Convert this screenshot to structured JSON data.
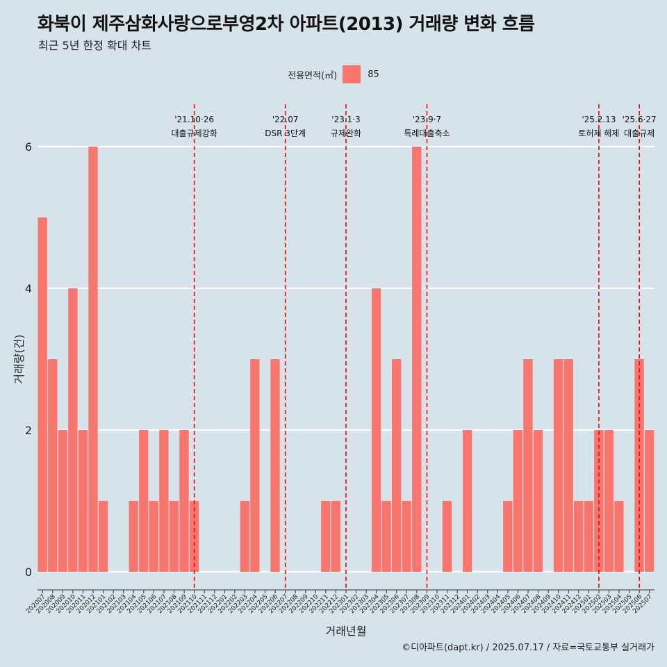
{
  "title": "화북이 제주삼화사랑으로부영2차 아파트(2013) 거래량 변화 흐름",
  "subtitle": "최근 5년 한정 확대 차트",
  "caption": "©디아파트(dapt.kr) / 2025.07.17 / 자료=국토교통부 실거래가",
  "legend": {
    "title": "전용면적(㎡)",
    "items": [
      {
        "label": "85",
        "color": "#F8766D"
      }
    ]
  },
  "chart_data": {
    "type": "bar",
    "xlabel": "거래년월",
    "ylabel": "거래량(건)",
    "ylim": [
      0,
      6
    ],
    "yticks": [
      0,
      2,
      4,
      6
    ],
    "grid": true,
    "categories": [
      "202007",
      "202008",
      "202009",
      "202010",
      "202011",
      "202012",
      "202101",
      "202102",
      "202103",
      "202104",
      "202105",
      "202106",
      "202107",
      "202108",
      "202109",
      "202110",
      "202111",
      "202112",
      "202201",
      "202202",
      "202203",
      "202204",
      "202205",
      "202206",
      "202207",
      "202208",
      "202209",
      "202210",
      "202211",
      "202212",
      "202301",
      "202302",
      "202303",
      "202304",
      "202305",
      "202306",
      "202307",
      "202308",
      "202309",
      "202310",
      "202311",
      "202312",
      "202401",
      "202402",
      "202403",
      "202404",
      "202405",
      "202406",
      "202407",
      "202408",
      "202409",
      "202410",
      "202411",
      "202412",
      "202501",
      "202502",
      "202503",
      "202504",
      "202505",
      "202506",
      "202507"
    ],
    "series": [
      {
        "name": "85",
        "color": "#F8766D",
        "values": [
          5,
          3,
          2,
          4,
          2,
          6,
          1,
          0,
          0,
          1,
          2,
          1,
          2,
          1,
          2,
          1,
          0,
          0,
          0,
          0,
          1,
          3,
          0,
          3,
          0,
          0,
          0,
          0,
          1,
          1,
          0,
          0,
          0,
          4,
          1,
          3,
          1,
          6,
          0,
          0,
          1,
          0,
          2,
          0,
          0,
          0,
          1,
          2,
          3,
          2,
          0,
          3,
          3,
          1,
          1,
          2,
          2,
          1,
          0,
          3,
          2
        ]
      }
    ],
    "annotations": [
      {
        "category": "202110",
        "date": "'21.10·26",
        "label": "대출규제강화"
      },
      {
        "category": "202207",
        "date": "'22.07",
        "label": "DSR 3단계"
      },
      {
        "category": "202301",
        "date": "'23.1·3",
        "label": "규제완화"
      },
      {
        "category": "202309",
        "date": "'23.9·7",
        "label": "특례대출축소"
      },
      {
        "category": "202502",
        "date": "'25.2.13",
        "label": "토허제 해제"
      },
      {
        "category": "202506",
        "date": "'25.6·27",
        "label": "대출규제"
      }
    ],
    "annotation_color": "#ff0000"
  }
}
